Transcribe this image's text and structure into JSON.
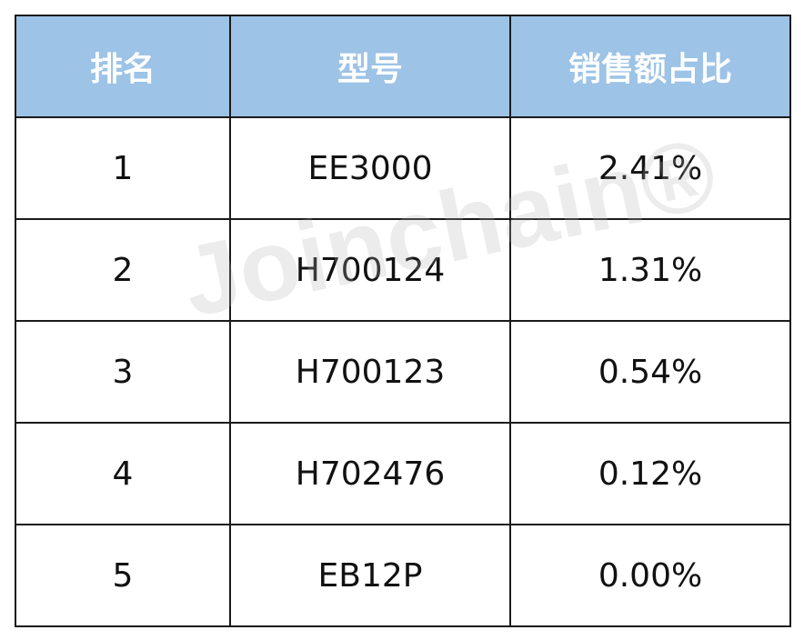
{
  "table": {
    "header": [
      "排名",
      "型号",
      "销售额占比"
    ],
    "rows": [
      [
        "1",
        "EE3000",
        "2.41%"
      ],
      [
        "2",
        "H700124",
        "1.31%"
      ],
      [
        "3",
        "H700123",
        "0.54%"
      ],
      [
        "4",
        "H702476",
        "0.12%"
      ],
      [
        "5",
        "EB12P",
        "0.00%"
      ]
    ]
  },
  "watermark": "Joinchain®"
}
